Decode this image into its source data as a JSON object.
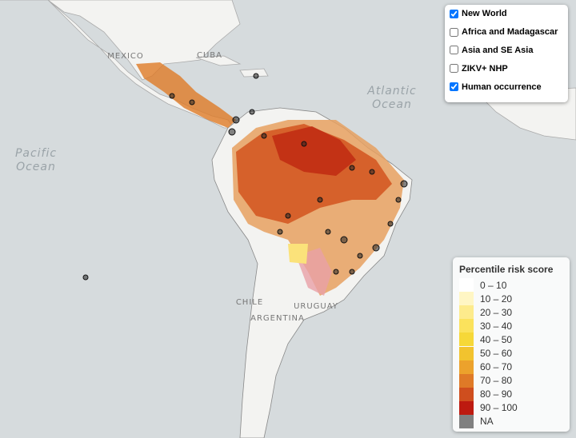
{
  "map_labels": {
    "mexico": "MEXICO",
    "cuba": "CUBA",
    "atlantic": "Atlantic",
    "atlantic_2": "Ocean",
    "pacific": "Pacific",
    "pacific_2": "Ocean",
    "chile": "CHILE",
    "argentina": "ARGENTINA",
    "uruguay": "URUGUAY"
  },
  "layers": [
    {
      "label": "New World",
      "checked": true
    },
    {
      "label": "Africa and Madagascar",
      "checked": false
    },
    {
      "label": "Asia and SE Asia",
      "checked": false
    },
    {
      "label": "ZIKV+ NHP",
      "checked": false
    },
    {
      "label": "Human occurrence",
      "checked": true
    }
  ],
  "legend": {
    "title": "Percentile risk score",
    "items": [
      {
        "label": "0 – 10",
        "color": "#ffffff"
      },
      {
        "label": "10 – 20",
        "color": "#fff6c4"
      },
      {
        "label": "20 – 30",
        "color": "#fdeb8c"
      },
      {
        "label": "30 – 40",
        "color": "#fbe25c"
      },
      {
        "label": "40 – 50",
        "color": "#f6d838"
      },
      {
        "label": "50 – 60",
        "color": "#f2c32e"
      },
      {
        "label": "60 – 70",
        "color": "#eca22c"
      },
      {
        "label": "70 – 80",
        "color": "#df7a27"
      },
      {
        "label": "80 – 90",
        "color": "#cf4e1e"
      },
      {
        "label": "90 – 100",
        "color": "#bd1a10"
      },
      {
        "label": "NA",
        "color": "#808080"
      }
    ]
  }
}
